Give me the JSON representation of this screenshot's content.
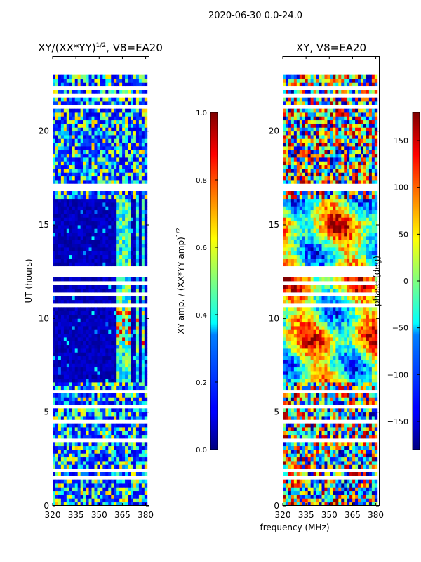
{
  "figure_title": "2020-06-30 0.0-24.0",
  "chart_data": [
    {
      "type": "heatmap",
      "title": "XY/(XX*YY)^{1/2}, V8=EA20",
      "title_text": "XY/(XX*YY)",
      "title_sup": "1/2",
      "title_suffix": ", V8=EA20",
      "xlabel": "",
      "ylabel": "UT (hours)",
      "x_ticks": [
        320,
        335,
        350,
        365,
        380
      ],
      "y_ticks": [
        0,
        5,
        10,
        15,
        20
      ],
      "xlim": [
        320,
        382
      ],
      "ylim": [
        0,
        24
      ],
      "data_extent_y": [
        0,
        23.2
      ],
      "colorbar": {
        "label": "XY amp. / (XX*YY amp)",
        "label_sup": "1/2",
        "ticks": [
          0.0,
          0.2,
          0.4,
          0.6,
          0.8,
          1.0
        ],
        "tick_labels": [
          "0.0",
          "0.2",
          "0.4",
          "0.6",
          "0.8",
          "1.0"
        ],
        "range": [
          0.0,
          1.0
        ],
        "bottom_note": "......"
      },
      "colormap": "jet"
    },
    {
      "type": "heatmap",
      "title": "XY, V8=EA20",
      "xlabel": "frequency (MHz)",
      "ylabel": "",
      "x_ticks": [
        320,
        335,
        350,
        365,
        380
      ],
      "y_ticks": [
        0,
        5,
        10,
        15,
        20
      ],
      "xlim": [
        320,
        382
      ],
      "ylim": [
        0,
        24
      ],
      "data_extent_y": [
        0,
        23.2
      ],
      "colorbar": {
        "label": "phase (deg)",
        "ticks": [
          -150,
          -100,
          -50,
          0,
          50,
          100,
          150
        ],
        "tick_labels": [
          "-150",
          "-100",
          "-50",
          "0",
          "50",
          "100",
          "150"
        ],
        "range": [
          -180,
          180
        ],
        "bottom_note": "......"
      },
      "colormap": "jet"
    }
  ]
}
